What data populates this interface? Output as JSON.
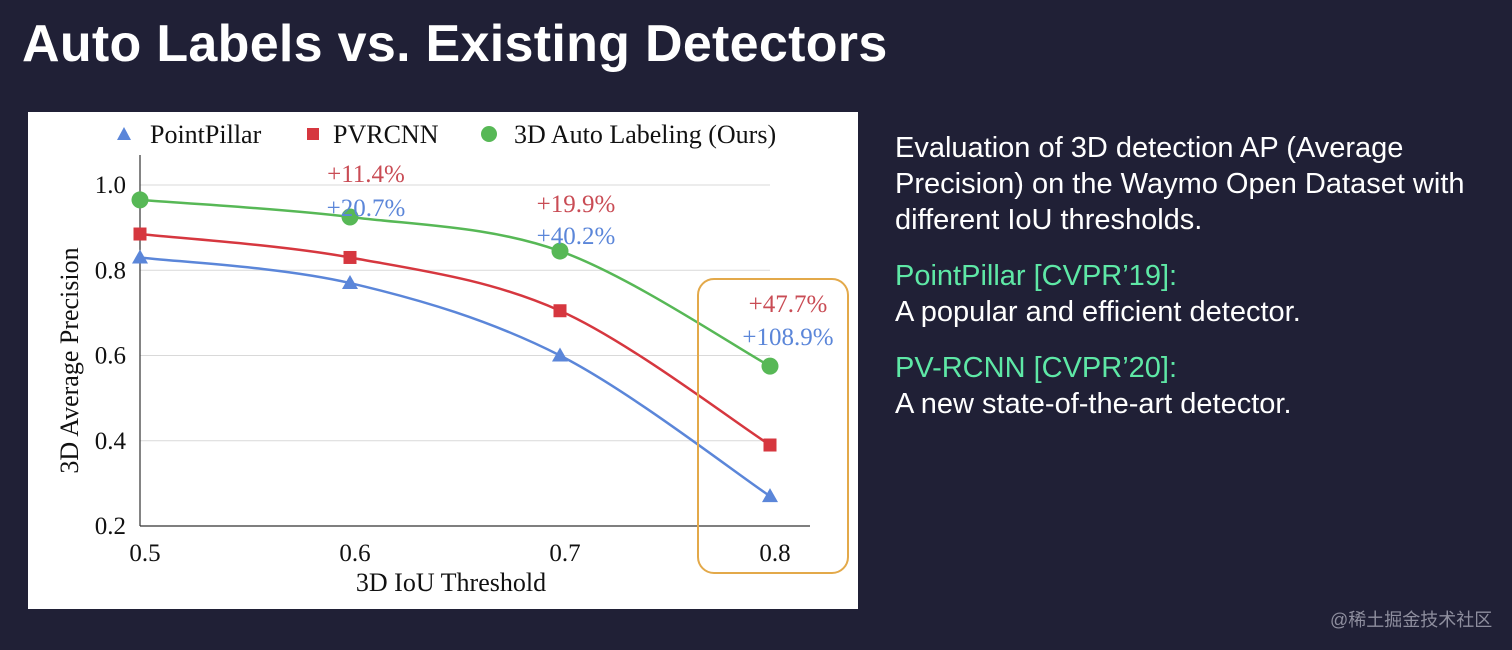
{
  "slide": {
    "title": "Auto Labels vs. Existing Detectors"
  },
  "description": {
    "intro": "Evaluation of 3D detection AP (Average Precision) on the Waymo Open Dataset with different IoU thresholds.",
    "items": [
      {
        "heading": "PointPillar [CVPR’19]:",
        "text": "A popular and efficient detector."
      },
      {
        "heading": "PV-RCNN [CVPR’20]:",
        "text": "A new state-of-the-art detector."
      }
    ]
  },
  "watermark": "@稀土掘金技术社区",
  "colors": {
    "background": "#202036",
    "accent_green": "#5ee8a6",
    "highlight_box": "#e3a94a"
  },
  "chart_data": {
    "type": "line",
    "title": "",
    "xlabel": "3D IoU Threshold",
    "ylabel": "3D Average Precision",
    "x": [
      0.5,
      0.6,
      0.7,
      0.8
    ],
    "x_tick_labels": [
      "0.5",
      "0.6",
      "0.7",
      "0.8"
    ],
    "xlim": [
      0.5,
      0.8
    ],
    "ylim": [
      0.2,
      1.0
    ],
    "y_ticks": [
      0.2,
      0.4,
      0.6,
      0.8,
      1.0
    ],
    "y_tick_labels": [
      "0.2",
      "0.4",
      "0.6",
      "0.8",
      "1.0"
    ],
    "grid": true,
    "legend_position": "top",
    "series": [
      {
        "name": "PointPillar",
        "marker": "triangle",
        "color": "#5b86d9",
        "values": [
          0.83,
          0.77,
          0.6,
          0.27
        ]
      },
      {
        "name": "PVRCNN",
        "marker": "square",
        "color": "#d6373f",
        "values": [
          0.885,
          0.83,
          0.705,
          0.39
        ]
      },
      {
        "name": "3D Auto Labeling (Ours)",
        "marker": "circle",
        "color": "#57b856",
        "values": [
          0.965,
          0.925,
          0.845,
          0.575
        ]
      }
    ],
    "annotations": [
      {
        "x": 0.6,
        "text": "+11.4%",
        "color": "#c94c55",
        "row": 1
      },
      {
        "x": 0.6,
        "text": "+20.7%",
        "color": "#5b86d9",
        "row": 2
      },
      {
        "x": 0.7,
        "text": "+19.9%",
        "color": "#c94c55",
        "row": 1
      },
      {
        "x": 0.7,
        "text": "+40.2%",
        "color": "#5b86d9",
        "row": 2
      },
      {
        "x": 0.8,
        "text": "+47.7%",
        "color": "#c94c55",
        "row": 1
      },
      {
        "x": 0.8,
        "text": "+108.9%",
        "color": "#5b86d9",
        "row": 2
      }
    ],
    "highlight_x": 0.8
  }
}
